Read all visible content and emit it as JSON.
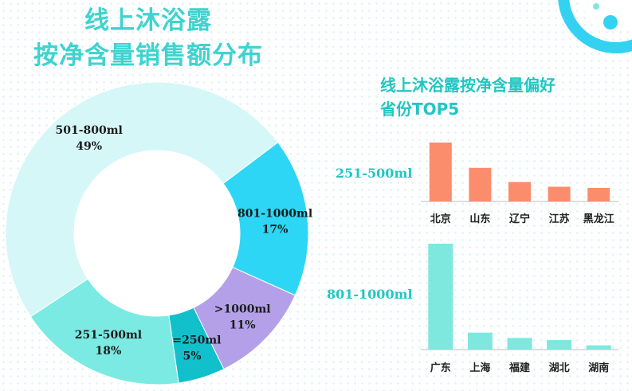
{
  "title": {
    "line1": "线上沐浴露",
    "line2": "按净含量销售额分布"
  },
  "subtitle": {
    "line1": "线上沐浴露按净含量偏好",
    "line2": "省份TOP5"
  },
  "colors": {
    "title": "#3fd3cf",
    "accent": "#20c6c2",
    "bar_251_500": "#fb8c6c",
    "bar_801_1000": "#7ee8df"
  },
  "chart_data": [
    {
      "type": "pie",
      "title": "线上沐浴露按净含量销售额分布",
      "slices": [
        {
          "label": "801-1000ml",
          "pct_label": "17%",
          "value": 17,
          "color": "#2ed6f5"
        },
        {
          "label": ">1000ml",
          "pct_label": "11%",
          "value": 11,
          "color": "#b3a0e8"
        },
        {
          "label": "<=250ml",
          "pct_label": "5%",
          "value": 5,
          "color": "#12c0cc"
        },
        {
          "label": "251-500ml",
          "pct_label": "18%",
          "value": 18,
          "color": "#7beae2"
        },
        {
          "label": "501-800ml",
          "pct_label": "49%",
          "value": 49,
          "color": "#d6f7f8"
        }
      ],
      "start_angle_deg": 37,
      "donut": true,
      "legend": "none"
    },
    {
      "type": "bar",
      "title": "线上沐浴露按净含量偏好省份TOP5",
      "series": [
        {
          "name": "251-500ml",
          "categories": [
            "北京",
            "山东",
            "辽宁",
            "江苏",
            "黑龙江"
          ],
          "values": [
            100,
            57,
            33,
            25,
            23
          ]
        },
        {
          "name": "801-1000ml",
          "categories": [
            "广东",
            "上海",
            "福建",
            "湖北",
            "湖南"
          ],
          "values": [
            100,
            16,
            11,
            9,
            4
          ]
        }
      ],
      "ylim": [
        0,
        100
      ],
      "grid": false,
      "axis_numbers": "none"
    }
  ]
}
